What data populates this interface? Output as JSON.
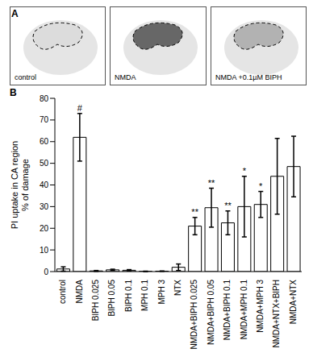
{
  "figure": {
    "panel_labels": [
      "A",
      "B"
    ],
    "images": [
      "control",
      "NMDA",
      "NMDA +0.1µM BIPH"
    ]
  },
  "chart_data": {
    "type": "bar",
    "categories": [
      "control",
      "NMDA",
      "BIPH 0.025",
      "BIPH 0.05",
      "BIPH 0.1",
      "MPH 0.1",
      "MPH 3",
      "NTX",
      "NMDA+BIPH 0.025",
      "NMDA+BIPH 0.05",
      "NMDA+BIPH 0.1",
      "NMDA+MPH 0.1",
      "NMDA+MPH 3",
      "NMDA+NTX+BIPH",
      "NMDA+NTX"
    ],
    "values": [
      1.2,
      62,
      0.3,
      0.8,
      0.6,
      0.1,
      0.2,
      2,
      21,
      29.5,
      22.5,
      30,
      31,
      44,
      48.5
    ],
    "errors": [
      1,
      11,
      0.2,
      0.3,
      0.3,
      0.1,
      0.1,
      1.5,
      4,
      9,
      5.5,
      14,
      6,
      17.5,
      14
    ],
    "annotations": [
      null,
      "#",
      null,
      null,
      null,
      null,
      null,
      null,
      "**",
      "**",
      "**",
      "*",
      "*",
      null,
      null
    ],
    "ylabel": [
      "PI uptake in CA region",
      "% of damage"
    ],
    "ylim": [
      0,
      80
    ],
    "yticks": [
      0,
      10,
      20,
      30,
      40,
      50,
      60,
      70,
      80
    ],
    "color": "#ffffff",
    "grid": false
  }
}
